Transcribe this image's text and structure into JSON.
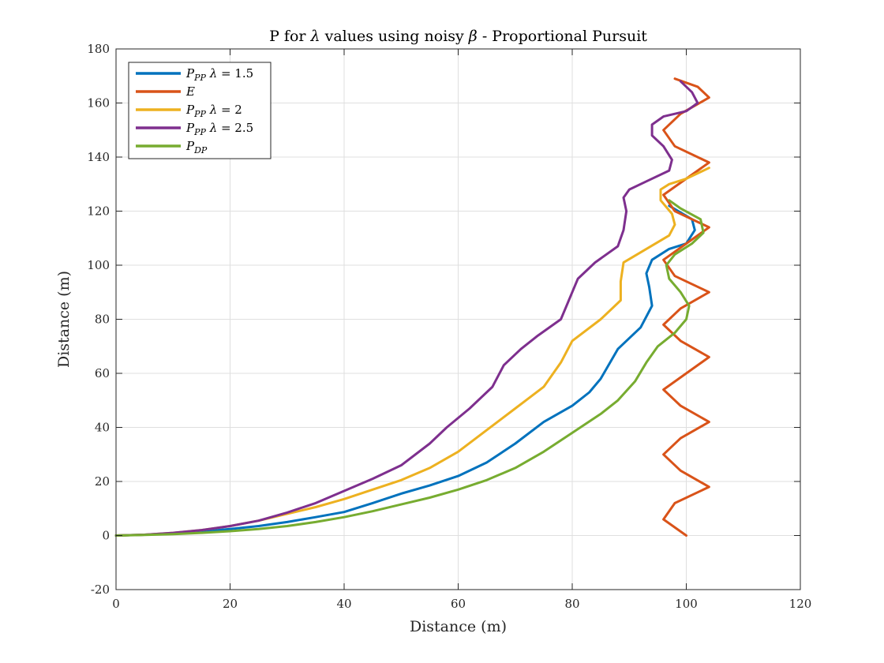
{
  "chart_data": {
    "type": "line",
    "title": "P for λ values using noisy β - Proportional Pursuit",
    "xlabel": "Distance (m)",
    "ylabel": "Distance (m)",
    "xlim": [
      0,
      120
    ],
    "ylim": [
      -20,
      180
    ],
    "xticks": [
      0,
      20,
      40,
      60,
      80,
      100,
      120
    ],
    "yticks": [
      -20,
      0,
      20,
      40,
      60,
      80,
      100,
      120,
      140,
      160,
      180
    ],
    "grid": true,
    "legend_position": "top-left",
    "series": [
      {
        "name": "P_PP λ = 1.5",
        "color": "#0072BD",
        "x": [
          0,
          5,
          10,
          15,
          20,
          25,
          30,
          35,
          40,
          45,
          50,
          55,
          60,
          65,
          70,
          75,
          80,
          83,
          85,
          88,
          92,
          94,
          93.5,
          93,
          94,
          97,
          100,
          101.5,
          101,
          97
        ],
        "y": [
          0,
          0.3,
          0.8,
          1.5,
          2.4,
          3.5,
          5,
          6.8,
          8.7,
          12,
          15.5,
          18.5,
          22,
          27,
          34,
          42,
          48,
          53,
          58,
          69,
          77,
          85,
          92,
          97,
          102,
          106,
          108,
          113,
          117,
          122
        ]
      },
      {
        "name": "E",
        "color": "#D95319",
        "x": [
          100,
          96,
          98,
          104,
          99,
          96,
          99,
          104,
          99,
          96,
          100,
          104,
          99,
          96,
          99,
          104,
          98,
          96,
          100,
          104,
          98,
          96,
          100,
          104,
          98,
          96,
          99,
          104,
          102,
          98
        ],
        "y": [
          0,
          6,
          12,
          18,
          24,
          30,
          36,
          42,
          48,
          54,
          60,
          66,
          72,
          78,
          84,
          90,
          96,
          102,
          108,
          114,
          120,
          126,
          132,
          138,
          144,
          150,
          156,
          162,
          166,
          169
        ]
      },
      {
        "name": "P_PP λ = 2",
        "color": "#EDB120",
        "x": [
          0,
          5,
          10,
          15,
          20,
          25,
          30,
          35,
          40,
          45,
          50,
          55,
          60,
          65,
          70,
          75,
          78,
          80,
          85,
          88.5,
          88.5,
          89,
          93,
          97,
          98,
          97.5,
          95.5,
          95.5,
          97,
          100,
          104
        ],
        "y": [
          0,
          0.3,
          1,
          2,
          3.5,
          5.5,
          8,
          10.5,
          13.5,
          17,
          20.5,
          25,
          31,
          39,
          47,
          55,
          64,
          72,
          80,
          87,
          94,
          101,
          106,
          111,
          115,
          119,
          124,
          128,
          130,
          132,
          136
        ]
      },
      {
        "name": "P_PP λ = 2.5",
        "color": "#7E2F8E",
        "x": [
          0,
          5,
          10,
          15,
          20,
          25,
          30,
          35,
          40,
          45,
          50,
          55,
          58,
          62,
          66,
          68,
          71,
          74,
          78,
          79,
          80,
          81,
          84,
          88,
          89,
          89.5,
          89,
          90,
          93,
          97,
          97.5,
          96,
          94,
          94,
          96,
          100,
          102,
          101,
          99
        ],
        "y": [
          0,
          0.3,
          1,
          2,
          3.5,
          5.5,
          8.5,
          12,
          16.5,
          21,
          26,
          34,
          40,
          47,
          55,
          63,
          69,
          74,
          80,
          85,
          90,
          95,
          101,
          107,
          113,
          120,
          125,
          128,
          131,
          135,
          139,
          144,
          148,
          152,
          155,
          157,
          160,
          164,
          168
        ]
      },
      {
        "name": "P_DP",
        "color": "#77AC30",
        "x": [
          0,
          5,
          10,
          15,
          20,
          25,
          30,
          35,
          40,
          45,
          50,
          55,
          60,
          65,
          70,
          75,
          80,
          85,
          88,
          91,
          93,
          95,
          98,
          100,
          100.5,
          99,
          97,
          96.5,
          98,
          101,
          103,
          102.5,
          99,
          97
        ],
        "y": [
          0,
          0.2,
          0.5,
          1,
          1.6,
          2.4,
          3.5,
          5,
          6.8,
          9,
          11.5,
          14,
          17,
          20.5,
          25,
          31,
          38,
          45,
          50,
          57,
          64,
          70,
          75,
          80,
          85,
          90,
          95,
          100,
          104,
          108,
          112,
          117,
          121,
          124
        ]
      }
    ]
  }
}
